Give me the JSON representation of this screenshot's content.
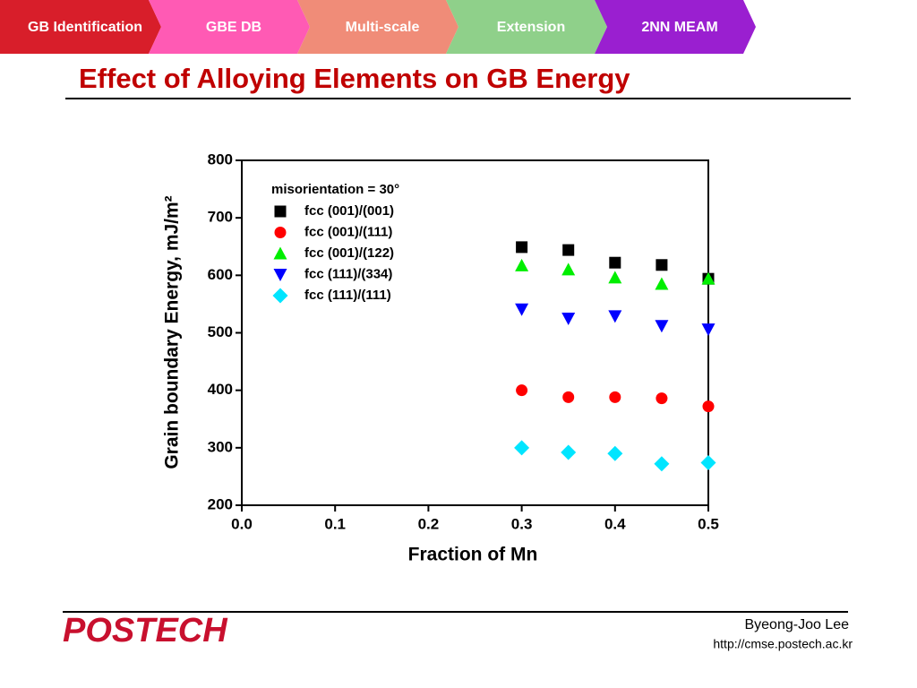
{
  "nav": [
    "GB Identification",
    "GBE DB",
    "Multi-scale",
    "Extension",
    "2NN MEAM"
  ],
  "slide_title": "Effect of Alloying Elements on GB Energy",
  "chart_data": {
    "type": "scatter",
    "x_label": "Fraction of Mn",
    "y_label": "Grain boundary Energy, mJ/m²",
    "legend_title": "misorientation = 30°",
    "x": [
      0.3,
      0.35,
      0.4,
      0.45,
      0.5
    ],
    "series": [
      {
        "name": "fcc (001)/(001)",
        "color": "#000000",
        "marker": "square",
        "values": [
          649,
          644,
          622,
          618,
          594
        ]
      },
      {
        "name": "fcc (001)/(111)",
        "color": "#ff0000",
        "marker": "circle",
        "values": [
          400,
          388,
          388,
          386,
          372
        ]
      },
      {
        "name": "fcc (001)/(122)",
        "color": "#00ee00",
        "marker": "triangle-up",
        "values": [
          617,
          610,
          596,
          585,
          594
        ]
      },
      {
        "name": "fcc (111)/(334)",
        "color": "#0000ff",
        "marker": "triangle-down",
        "values": [
          541,
          525,
          529,
          512,
          506
        ]
      },
      {
        "name": "fcc (111)/(111)",
        "color": "#00e5ff",
        "marker": "diamond",
        "values": [
          300,
          292,
          290,
          272,
          274
        ]
      }
    ],
    "xlim": [
      0,
      0.5
    ],
    "xticks": [
      {
        "value": 0,
        "label": "0.0"
      },
      0.1,
      0.2,
      0.3,
      0.4,
      0.5
    ],
    "ylim": [
      200,
      800
    ],
    "yticks": [
      200,
      300,
      400,
      500,
      600,
      700,
      800
    ]
  },
  "footer": {
    "logo": "POSTECH",
    "author": "Byeong-Joo Lee",
    "url": "http://cmse.postech.ac.kr"
  }
}
